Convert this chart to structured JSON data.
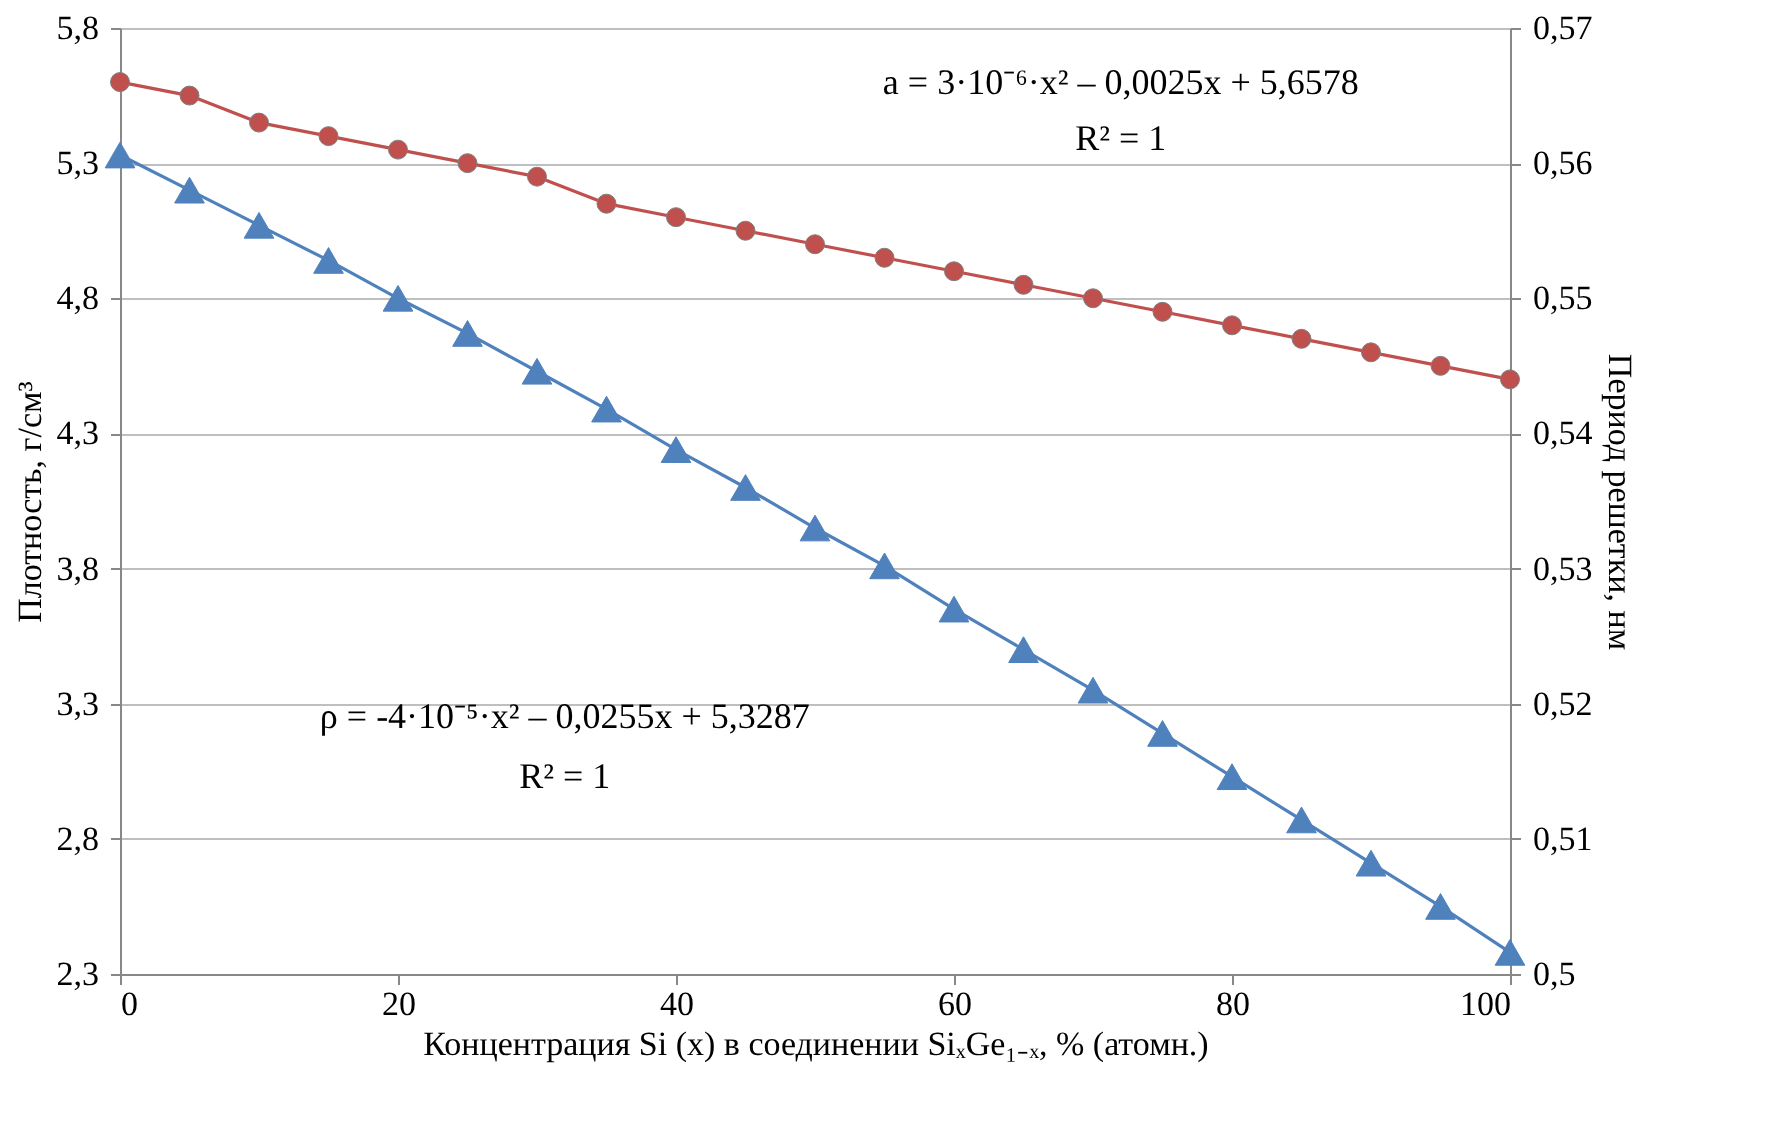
{
  "chart_data": {
    "type": "line",
    "xlabel": "Концентрация Si (x) в соединении SiₓGe₁₋ₓ, % (атомн.)",
    "ylabel": "Плотность, г/см³",
    "y2label": "Период решетки, нм",
    "x": [
      0,
      5,
      10,
      15,
      20,
      25,
      30,
      35,
      40,
      45,
      50,
      55,
      60,
      65,
      70,
      75,
      80,
      85,
      90,
      95,
      100
    ],
    "series": [
      {
        "color": "#4f81bd",
        "marker": "triangle",
        "axis": "y",
        "values": [
          5.33,
          5.2,
          5.07,
          4.94,
          4.8,
          4.67,
          4.53,
          4.39,
          4.24,
          4.1,
          3.95,
          3.81,
          3.65,
          3.5,
          3.35,
          3.19,
          3.03,
          2.87,
          2.71,
          2.55,
          2.38
        ]
      },
      {
        "color": "#c0504d",
        "marker": "circle",
        "axis": "y2",
        "values": [
          0.566,
          0.565,
          0.563,
          0.562,
          0.561,
          0.56,
          0.559,
          0.557,
          0.556,
          0.555,
          0.554,
          0.553,
          0.552,
          0.551,
          0.55,
          0.549,
          0.548,
          0.547,
          0.546,
          0.545,
          0.544
        ]
      }
    ],
    "xlim": [
      0,
      100
    ],
    "xticks": [
      0,
      20,
      40,
      60,
      80,
      100
    ],
    "ylim": [
      2.3,
      5.8
    ],
    "yticks": [
      {
        "value": 2.3,
        "label": "2,3"
      },
      {
        "value": 2.8,
        "label": "2,8"
      },
      {
        "value": 3.3,
        "label": "3,3"
      },
      {
        "value": 3.8,
        "label": "3,8"
      },
      {
        "value": 4.3,
        "label": "4,3"
      },
      {
        "value": 4.8,
        "label": "4,8"
      },
      {
        "value": 5.3,
        "label": "5,3"
      },
      {
        "value": 5.8,
        "label": "5,8"
      }
    ],
    "y2lim": [
      0.5,
      0.57
    ],
    "y2ticks": [
      {
        "value": 0.5,
        "label": "0,5"
      },
      {
        "value": 0.51,
        "label": "0,51"
      },
      {
        "value": 0.52,
        "label": "0,52"
      },
      {
        "value": 0.53,
        "label": "0,53"
      },
      {
        "value": 0.54,
        "label": "0,54"
      },
      {
        "value": 0.55,
        "label": "0,55"
      },
      {
        "value": 0.56,
        "label": "0,56"
      },
      {
        "value": 0.57,
        "label": "0,57"
      }
    ],
    "grid": "y",
    "line_style": "solid",
    "annotations": [
      "a = 3·10⁻⁶·x² – 0,0025x + 5,6578",
      "R² = 1",
      "ρ = -4·10⁻⁵·x² – 0,0255x + 5,3287",
      "R² = 1"
    ]
  }
}
